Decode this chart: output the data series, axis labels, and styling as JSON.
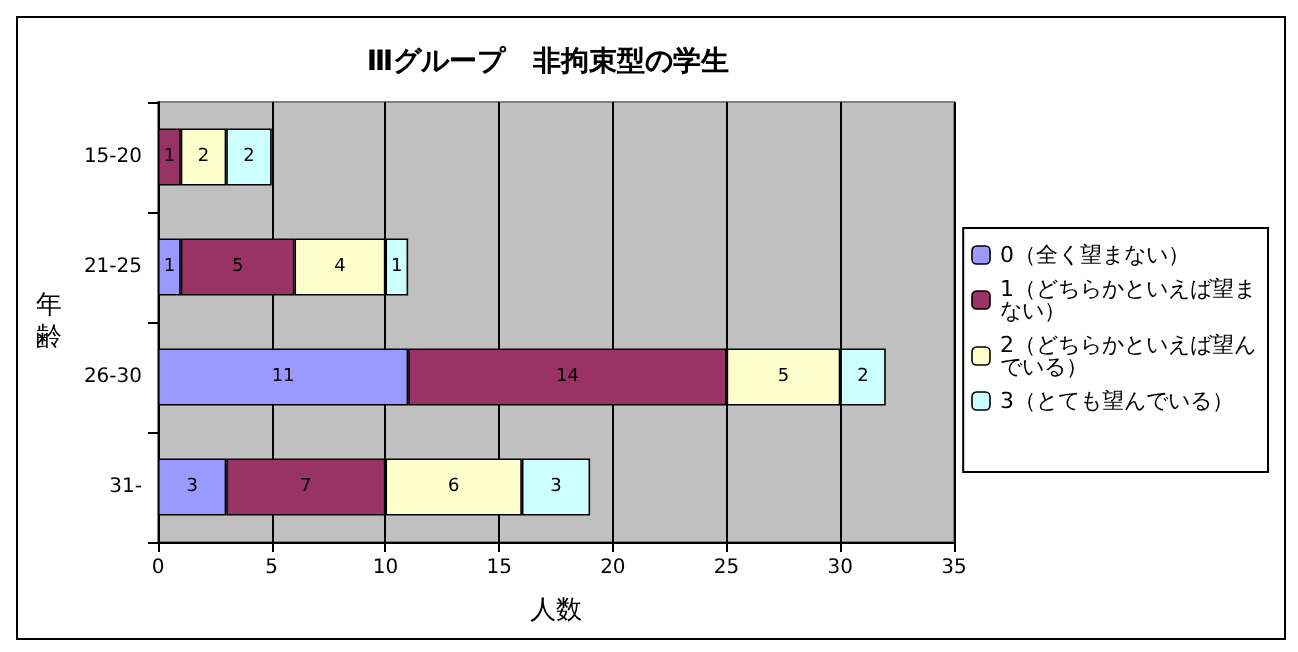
{
  "chart_data": {
    "type": "bar",
    "orientation": "horizontal",
    "stacked": true,
    "title": "Ⅲグループ　非拘束型の学生",
    "xlabel": "人数",
    "ylabel": "年齢",
    "categories": [
      "15-20",
      "21-25",
      "26-30",
      "31-"
    ],
    "series": [
      {
        "name": "0（全く望まない）",
        "color": "#9999ff",
        "values": [
          null,
          1,
          11,
          3
        ]
      },
      {
        "name": "1（どちらかといえば望まない）",
        "color": "#993366",
        "values": [
          1,
          5,
          14,
          7
        ]
      },
      {
        "name": "2（どちらかといえば望んでいる）",
        "color": "#ffffcc",
        "values": [
          2,
          4,
          5,
          6
        ]
      },
      {
        "name": "3（とても望んでいる）",
        "color": "#ccffff",
        "values": [
          2,
          1,
          2,
          3
        ]
      }
    ],
    "xlim": [
      0,
      35
    ],
    "xticks": [
      0,
      5,
      10,
      15,
      20,
      25,
      30,
      35
    ],
    "grid": "x",
    "legend": "right",
    "data_labels": true
  }
}
